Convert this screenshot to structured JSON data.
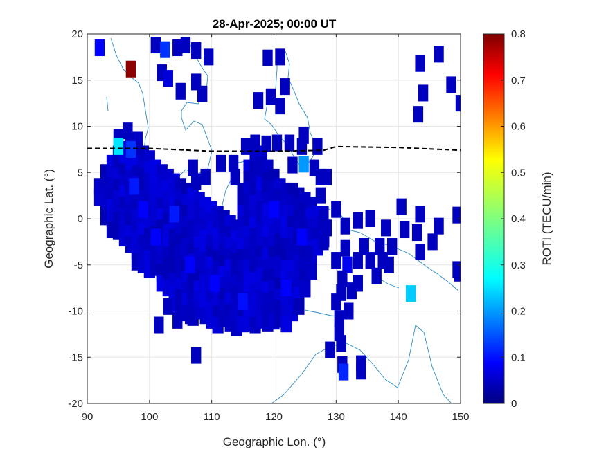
{
  "chart_data": {
    "type": "heatmap",
    "title": "28-Apr-2025; 00:00 UT",
    "xlabel": "Geographic Lon. (°)",
    "ylabel": "Geographic Lat. (°)",
    "xlim": [
      90,
      150
    ],
    "ylim": [
      -20,
      20
    ],
    "xticks": [
      90,
      100,
      110,
      120,
      130,
      140,
      150
    ],
    "yticks": [
      -20,
      -15,
      -10,
      -5,
      0,
      5,
      10,
      15,
      20
    ],
    "grid": true,
    "colorbar": {
      "label": "ROTI (TECU/min)",
      "colormap": "jet",
      "range": [
        0,
        0.8
      ],
      "ticks": [
        0,
        0.1,
        0.2,
        0.3,
        0.4,
        0.5,
        0.6,
        0.7,
        0.8
      ]
    },
    "magnetic_equator": {
      "style": "dashed black line",
      "points": [
        [
          90,
          7.6
        ],
        [
          100,
          7.6
        ],
        [
          110,
          7.3
        ],
        [
          120,
          7.3
        ],
        [
          128,
          7.4
        ],
        [
          130,
          7.8
        ],
        [
          140,
          7.7
        ],
        [
          150,
          7.4
        ]
      ]
    },
    "region_cells": {
      "description": "dense low-ROTI coverage",
      "roti": 0.04,
      "bands": [
        [
          92,
          3.5,
          2.0
        ],
        [
          93,
          5.0,
          0.0
        ],
        [
          94,
          6.0,
          -1.5
        ],
        [
          95,
          7.0,
          -2.0
        ],
        [
          96,
          7.5,
          -3.0
        ],
        [
          97,
          8.0,
          -4.0
        ],
        [
          98,
          8.5,
          -5.0
        ],
        [
          99,
          7.0,
          -5.5
        ],
        [
          100,
          6.5,
          -6.0
        ],
        [
          101,
          5.5,
          -6.5
        ],
        [
          102,
          5.0,
          -7.5
        ],
        [
          103,
          4.5,
          -8.5
        ],
        [
          104,
          4.0,
          -9.5
        ],
        [
          105,
          3.5,
          -10.0
        ],
        [
          106,
          3.0,
          -10.5
        ],
        [
          107,
          2.5,
          -11.0
        ],
        [
          108,
          2.0,
          -11.0
        ],
        [
          109,
          1.5,
          -11.0
        ],
        [
          110,
          1.0,
          -11.0
        ],
        [
          111,
          0.5,
          -11.5
        ],
        [
          112,
          0.0,
          -11.5
        ],
        [
          113,
          -0.5,
          -12.0
        ],
        [
          114,
          -1.0,
          -12.0
        ],
        [
          115,
          3.0,
          -12.0
        ],
        [
          116,
          5.5,
          -12.0
        ],
        [
          117,
          6.5,
          -12.0
        ],
        [
          118,
          7.0,
          -12.0
        ],
        [
          119,
          5.5,
          -12.0
        ],
        [
          120,
          4.5,
          -12.0
        ],
        [
          121,
          3.5,
          -12.0
        ],
        [
          122,
          3.0,
          -12.0
        ],
        [
          123,
          3.0,
          -11.0
        ],
        [
          124,
          2.5,
          -10.0
        ],
        [
          125,
          2.0,
          -8.0
        ],
        [
          126,
          1.5,
          -6.0
        ],
        [
          127,
          0.5,
          -4.0
        ],
        [
          128,
          -1.0,
          -3.0
        ]
      ]
    },
    "cells": [
      [
        97,
        16.2,
        0.79
      ],
      [
        92,
        18.5,
        0.1
      ],
      [
        101,
        18.8,
        0.05
      ],
      [
        102.5,
        18.3,
        0.14
      ],
      [
        104.5,
        18.5,
        0.05
      ],
      [
        105.8,
        18.8,
        0.05
      ],
      [
        107.5,
        18.2,
        0.05
      ],
      [
        109.5,
        17.5,
        0.05
      ],
      [
        119,
        17.4,
        0.05
      ],
      [
        121,
        17.5,
        0.05
      ],
      [
        102,
        15.8,
        0.05
      ],
      [
        103,
        15.2,
        0.07
      ],
      [
        105,
        13.8,
        0.05
      ],
      [
        107.5,
        14.8,
        0.05
      ],
      [
        108.5,
        13.5,
        0.05
      ],
      [
        117.5,
        12.8,
        0.05
      ],
      [
        119.5,
        13.2,
        0.05
      ],
      [
        121.8,
        14.3,
        0.05
      ],
      [
        121,
        12.2,
        0.05
      ],
      [
        115.5,
        7.8,
        0.05
      ],
      [
        117,
        8.2,
        0.05
      ],
      [
        118.8,
        8.1,
        0.05
      ],
      [
        120.5,
        8.2,
        0.05
      ],
      [
        122.5,
        8.2,
        0.05
      ],
      [
        124.5,
        7.8,
        0.05
      ],
      [
        127,
        7.8,
        0.05
      ],
      [
        113.5,
        6.0,
        0.05
      ],
      [
        111.5,
        6.0,
        0.05
      ],
      [
        113.8,
        4.5,
        0.05
      ],
      [
        117.5,
        5.5,
        0.05
      ],
      [
        123.0,
        5.8,
        0.05
      ],
      [
        124.8,
        5.9,
        0.22
      ],
      [
        126.5,
        5.5,
        0.05
      ],
      [
        127.5,
        4.5,
        0.05
      ],
      [
        107.0,
        5.5,
        0.05
      ],
      [
        109.0,
        4.5,
        0.05
      ],
      [
        107.5,
        4.0,
        0.05
      ],
      [
        95.0,
        8.8,
        0.05
      ],
      [
        96.5,
        9.5,
        0.05
      ],
      [
        95.0,
        7.8,
        0.28
      ],
      [
        97.0,
        7.5,
        0.14
      ],
      [
        124.8,
        9.0,
        0.05
      ],
      [
        130.0,
        1.0,
        0.05
      ],
      [
        131.5,
        -0.8,
        0.05
      ],
      [
        133.5,
        -0.2,
        0.05
      ],
      [
        135.5,
        0.0,
        0.05
      ],
      [
        138.0,
        -1.0,
        0.05
      ],
      [
        140.5,
        1.3,
        0.05
      ],
      [
        143.5,
        0.5,
        0.05
      ],
      [
        146.5,
        -0.8,
        0.05
      ],
      [
        143.0,
        -1.5,
        0.05
      ],
      [
        141.0,
        -1.2,
        0.05
      ],
      [
        145.5,
        -2.5,
        0.05
      ],
      [
        139.0,
        -3.0,
        0.05
      ],
      [
        137.0,
        -3.0,
        0.05
      ],
      [
        134.5,
        -3.0,
        0.05
      ],
      [
        131.5,
        -3.2,
        0.05
      ],
      [
        130.0,
        -4.5,
        0.05
      ],
      [
        131.8,
        -5.0,
        0.09
      ],
      [
        133.5,
        -4.5,
        0.05
      ],
      [
        135.5,
        -4.5,
        0.05
      ],
      [
        137.5,
        -4.5,
        0.05
      ],
      [
        136.5,
        -6.2,
        0.05
      ],
      [
        138.5,
        -5.0,
        0.05
      ],
      [
        143.5,
        -3.6,
        0.05
      ],
      [
        149.5,
        -5.5,
        0.05
      ],
      [
        149.5,
        0.4,
        0.05
      ],
      [
        133.5,
        -7.0,
        0.05
      ],
      [
        131.0,
        -6.5,
        0.05
      ],
      [
        132.5,
        -7.8,
        0.05
      ],
      [
        130.8,
        -8.0,
        0.05
      ],
      [
        130.0,
        -9.0,
        0.05
      ],
      [
        132.0,
        -10.0,
        0.05
      ],
      [
        130.5,
        -10.8,
        0.05
      ],
      [
        130.5,
        -12.3,
        0.05
      ],
      [
        130.8,
        -13.5,
        0.05
      ],
      [
        129.0,
        -14.2,
        0.05
      ],
      [
        131.0,
        -15.8,
        0.05
      ],
      [
        131.2,
        -16.6,
        0.13
      ],
      [
        134.0,
        -15.7,
        0.05
      ],
      [
        134.0,
        -16.5,
        0.05
      ],
      [
        142.0,
        -8.1,
        0.26
      ],
      [
        149.8,
        -5.9,
        0.05
      ],
      [
        101.5,
        -11.5,
        0.05
      ],
      [
        104.5,
        -11.0,
        0.05
      ],
      [
        103.0,
        -9.5,
        0.05
      ],
      [
        107.5,
        -14.8,
        0.05
      ],
      [
        106.5,
        -10.5,
        0.05
      ],
      [
        143.5,
        16.8,
        0.05
      ],
      [
        146.5,
        17.8,
        0.05
      ],
      [
        144.0,
        13.6,
        0.05
      ],
      [
        148.5,
        14.5,
        0.05
      ],
      [
        150.0,
        12.5,
        0.05
      ],
      [
        143.2,
        11.3,
        0.05
      ],
      [
        128.5,
        4.5,
        0.05
      ],
      [
        127.5,
        2.5,
        0.05
      ],
      [
        128.0,
        0.5,
        0.05
      ],
      [
        128.5,
        -1.0,
        0.05
      ],
      [
        128.0,
        -2.5,
        0.05
      ],
      [
        125.5,
        -3.8,
        0.05
      ]
    ],
    "highlights": [
      [
        104.0,
        0.5,
        0.12
      ],
      [
        101.0,
        -2.0,
        0.1
      ],
      [
        97.5,
        3.5,
        0.12
      ],
      [
        106.5,
        -5.0,
        0.1
      ],
      [
        110.5,
        -7.0,
        0.1
      ],
      [
        115.0,
        -9.0,
        0.11
      ],
      [
        122.0,
        -7.5,
        0.1
      ],
      [
        99.0,
        1.0,
        0.1
      ],
      [
        120.0,
        1.0,
        0.1
      ],
      [
        124.5,
        -2.0,
        0.1
      ]
    ]
  }
}
